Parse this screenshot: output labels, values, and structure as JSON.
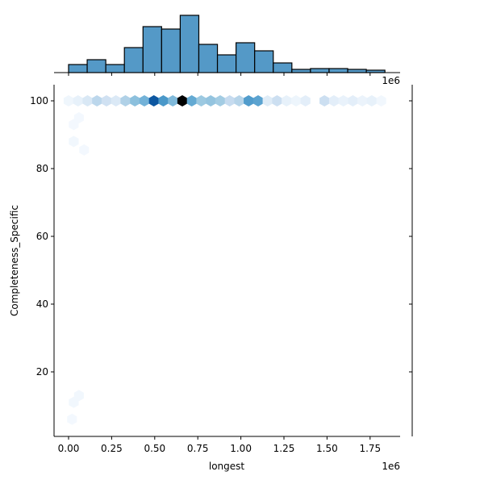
{
  "chart_data": {
    "type": "hexbin-jointplot",
    "title": "",
    "xlabel": "longest",
    "ylabel": "Completeness_Specific",
    "x_offset_text": "1e6",
    "top_offset_text": "1e6",
    "x_ticks": [
      0.0,
      0.25,
      0.5,
      0.75,
      1.0,
      1.25,
      1.5,
      1.75
    ],
    "x_tick_labels": [
      "0.00",
      "0.25",
      "0.50",
      "0.75",
      "1.00",
      "1.25",
      "1.50",
      "1.75"
    ],
    "y_ticks": [
      20,
      40,
      60,
      80,
      100
    ],
    "y_tick_labels": [
      "20",
      "40",
      "60",
      "80",
      "100"
    ],
    "xlim": [
      -0.085,
      1.93
    ],
    "ylim": [
      1,
      104.8
    ],
    "grid": false,
    "hexbin_color_map": "Blues",
    "hexbins": [
      {
        "x": 0.0,
        "y": 100,
        "intensity": 0.04
      },
      {
        "x": 0.055,
        "y": 100,
        "intensity": 0.08
      },
      {
        "x": 0.11,
        "y": 100,
        "intensity": 0.15
      },
      {
        "x": 0.165,
        "y": 100,
        "intensity": 0.28
      },
      {
        "x": 0.22,
        "y": 100,
        "intensity": 0.2
      },
      {
        "x": 0.275,
        "y": 100,
        "intensity": 0.14
      },
      {
        "x": 0.33,
        "y": 100,
        "intensity": 0.32
      },
      {
        "x": 0.385,
        "y": 100,
        "intensity": 0.42
      },
      {
        "x": 0.44,
        "y": 100,
        "intensity": 0.48
      },
      {
        "x": 0.495,
        "y": 100,
        "intensity": 0.85
      },
      {
        "x": 0.55,
        "y": 100,
        "intensity": 0.6
      },
      {
        "x": 0.605,
        "y": 100,
        "intensity": 0.45
      },
      {
        "x": 0.66,
        "y": 100,
        "intensity": 1.0
      },
      {
        "x": 0.715,
        "y": 100,
        "intensity": 0.52
      },
      {
        "x": 0.77,
        "y": 100,
        "intensity": 0.38
      },
      {
        "x": 0.825,
        "y": 100,
        "intensity": 0.4
      },
      {
        "x": 0.88,
        "y": 100,
        "intensity": 0.36
      },
      {
        "x": 0.935,
        "y": 100,
        "intensity": 0.25
      },
      {
        "x": 0.99,
        "y": 100,
        "intensity": 0.3
      },
      {
        "x": 1.045,
        "y": 100,
        "intensity": 0.58
      },
      {
        "x": 1.1,
        "y": 100,
        "intensity": 0.55
      },
      {
        "x": 1.155,
        "y": 100,
        "intensity": 0.12
      },
      {
        "x": 1.21,
        "y": 100,
        "intensity": 0.22
      },
      {
        "x": 1.265,
        "y": 100,
        "intensity": 0.08
      },
      {
        "x": 1.32,
        "y": 100,
        "intensity": 0.05
      },
      {
        "x": 1.375,
        "y": 100,
        "intensity": 0.1
      },
      {
        "x": 1.485,
        "y": 100,
        "intensity": 0.22
      },
      {
        "x": 1.54,
        "y": 100,
        "intensity": 0.1
      },
      {
        "x": 1.595,
        "y": 100,
        "intensity": 0.07
      },
      {
        "x": 1.65,
        "y": 100,
        "intensity": 0.1
      },
      {
        "x": 1.705,
        "y": 100,
        "intensity": 0.06
      },
      {
        "x": 1.76,
        "y": 100,
        "intensity": 0.08
      },
      {
        "x": 1.815,
        "y": 100,
        "intensity": 0.03
      },
      {
        "x": 0.03,
        "y": 93,
        "intensity": 0.02
      },
      {
        "x": 0.06,
        "y": 95,
        "intensity": 0.02
      },
      {
        "x": 0.03,
        "y": 88,
        "intensity": 0.03
      },
      {
        "x": 0.09,
        "y": 85.5,
        "intensity": 0.02
      },
      {
        "x": 0.02,
        "y": 6,
        "intensity": 0.02
      },
      {
        "x": 0.03,
        "y": 11,
        "intensity": 0.03
      },
      {
        "x": 0.06,
        "y": 13,
        "intensity": 0.03
      }
    ],
    "top_histogram": {
      "bin_edges": [
        0.0,
        0.108,
        0.216,
        0.324,
        0.432,
        0.54,
        0.648,
        0.756,
        0.864,
        0.972,
        1.08,
        1.188,
        1.296,
        1.404,
        1.512,
        1.62,
        1.728,
        1.836
      ],
      "counts": [
        10,
        16,
        10,
        31,
        57,
        54,
        71,
        35,
        22,
        37,
        27,
        12,
        4,
        5,
        5,
        4,
        3
      ],
      "color": "#5499c7"
    },
    "right_histogram": {
      "note": "empty / negligible",
      "counts": []
    },
    "colors": {
      "hist_fill": "#5499c7",
      "hist_edge": "#000000",
      "hex_low": "#f7fbff",
      "hex_high": "#08306b"
    }
  }
}
